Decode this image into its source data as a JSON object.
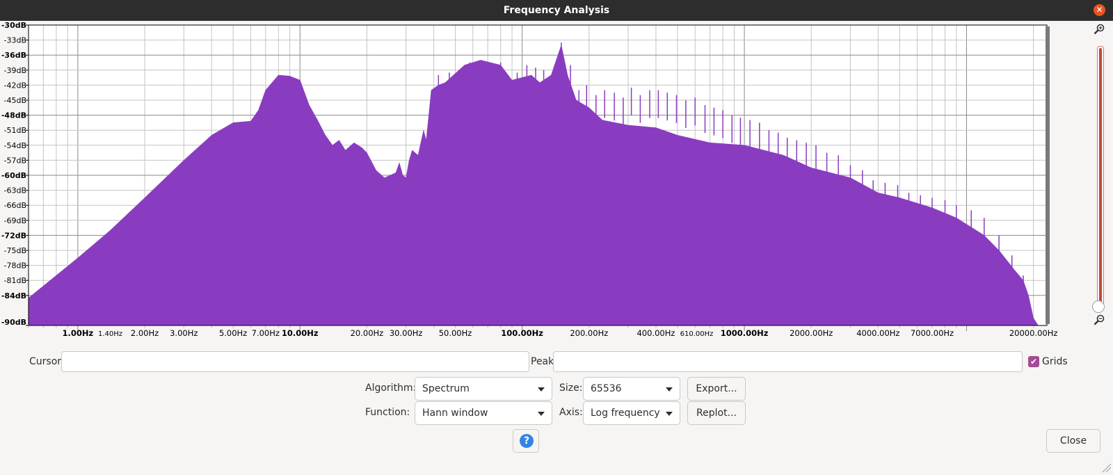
{
  "window": {
    "title": "Frequency Analysis"
  },
  "chart_data": {
    "type": "area",
    "title": "",
    "x_scale": "log",
    "xlim": [
      0.6,
      23000
    ],
    "ylim": [
      -90,
      -30
    ],
    "fill_color": "#8a3cc0",
    "grid": true,
    "y_ticks": [
      {
        "label": "-30dB",
        "value": -30,
        "major": true
      },
      {
        "label": "-33dB",
        "value": -33,
        "major": false
      },
      {
        "label": "-36dB",
        "value": -36,
        "major": true
      },
      {
        "label": "-39dB",
        "value": -39,
        "major": false
      },
      {
        "label": "-42dB",
        "value": -42,
        "major": false
      },
      {
        "label": "-45dB",
        "value": -45,
        "major": false
      },
      {
        "label": "-48dB",
        "value": -48,
        "major": true
      },
      {
        "label": "-51dB",
        "value": -51,
        "major": false
      },
      {
        "label": "-54dB",
        "value": -54,
        "major": false
      },
      {
        "label": "-57dB",
        "value": -57,
        "major": false
      },
      {
        "label": "-60dB",
        "value": -60,
        "major": true
      },
      {
        "label": "-63dB",
        "value": -63,
        "major": false
      },
      {
        "label": "-66dB",
        "value": -66,
        "major": false
      },
      {
        "label": "-69dB",
        "value": -69,
        "major": false
      },
      {
        "label": "-72dB",
        "value": -72,
        "major": true
      },
      {
        "label": "-75dB",
        "value": -75,
        "major": false
      },
      {
        "label": "-78dB",
        "value": -78,
        "major": false
      },
      {
        "label": "-81dB",
        "value": -81,
        "major": false
      },
      {
        "label": "-84dB",
        "value": -84,
        "major": true
      },
      {
        "label": "-90dB",
        "value": -90,
        "major": true
      }
    ],
    "x_ticks": [
      {
        "label": "1.00Hz",
        "value": 1,
        "major": true
      },
      {
        "label": "1.40Hz",
        "value": 1.4,
        "major": false,
        "small": true
      },
      {
        "label": "2.00Hz",
        "value": 2,
        "major": false
      },
      {
        "label": "3.00Hz",
        "value": 3,
        "major": false
      },
      {
        "label": "5.00Hz",
        "value": 5,
        "major": false
      },
      {
        "label": "7.00Hz",
        "value": 7,
        "major": false
      },
      {
        "label": "10.00Hz",
        "value": 10,
        "major": true
      },
      {
        "label": "20.00Hz",
        "value": 20,
        "major": false
      },
      {
        "label": "30.00Hz",
        "value": 30,
        "major": false
      },
      {
        "label": "50.00Hz",
        "value": 50,
        "major": false
      },
      {
        "label": "100.00Hz",
        "value": 100,
        "major": true
      },
      {
        "label": "200.00Hz",
        "value": 200,
        "major": false
      },
      {
        "label": "400.00Hz",
        "value": 400,
        "major": false
      },
      {
        "label": "610.00Hz",
        "value": 610,
        "major": false,
        "small": true
      },
      {
        "label": "1000.00Hz",
        "value": 1000,
        "major": true
      },
      {
        "label": "2000.00Hz",
        "value": 2000,
        "major": false
      },
      {
        "label": "4000.00Hz",
        "value": 4000,
        "major": false
      },
      {
        "label": "7000.00Hz",
        "value": 7000,
        "major": false
      },
      {
        "label": "20000.00Hz",
        "value": 20000,
        "major": false
      }
    ],
    "envelope": [
      [
        0.6,
        -84.5
      ],
      [
        0.8,
        -80
      ],
      [
        1.0,
        -76.5
      ],
      [
        1.4,
        -71
      ],
      [
        2.0,
        -64.5
      ],
      [
        3.0,
        -57
      ],
      [
        4.0,
        -52
      ],
      [
        5.0,
        -49.5
      ],
      [
        6.0,
        -49.2
      ],
      [
        6.5,
        -47
      ],
      [
        7.0,
        -43
      ],
      [
        8.0,
        -40
      ],
      [
        9.0,
        -40.2
      ],
      [
        10.0,
        -41
      ],
      [
        11.0,
        -46
      ],
      [
        12.0,
        -49
      ],
      [
        13.0,
        -52
      ],
      [
        14.0,
        -54
      ],
      [
        15.0,
        -53
      ],
      [
        16.0,
        -55
      ],
      [
        17.5,
        -53.5
      ],
      [
        19.0,
        -54.5
      ],
      [
        20.0,
        -55.5
      ],
      [
        22.0,
        -59
      ],
      [
        24.0,
        -60.5
      ],
      [
        27.0,
        -59.5
      ],
      [
        28.0,
        -57.5
      ],
      [
        29.0,
        -60
      ],
      [
        30.0,
        -60.5
      ],
      [
        31.0,
        -57
      ],
      [
        32.0,
        -55
      ],
      [
        34.0,
        -56
      ],
      [
        36.0,
        -51
      ],
      [
        37.0,
        -53
      ],
      [
        38.0,
        -48
      ],
      [
        39.0,
        -43
      ],
      [
        42.0,
        -42
      ],
      [
        45.0,
        -41.5
      ],
      [
        55.0,
        -38
      ],
      [
        65.0,
        -37
      ],
      [
        80.0,
        -38
      ],
      [
        90.0,
        -41
      ],
      [
        110.0,
        -40
      ],
      [
        120.0,
        -41.5
      ],
      [
        135.0,
        -40
      ],
      [
        150.0,
        -34
      ],
      [
        160.0,
        -40
      ],
      [
        175.0,
        -45
      ],
      [
        200.0,
        -46.5
      ],
      [
        230.0,
        -49
      ],
      [
        300.0,
        -50
      ],
      [
        400.0,
        -50.5
      ],
      [
        500.0,
        -52
      ],
      [
        700.0,
        -53.5
      ],
      [
        1000.0,
        -54
      ],
      [
        1500.0,
        -56
      ],
      [
        2000.0,
        -58.5
      ],
      [
        3000.0,
        -60.5
      ],
      [
        4000.0,
        -63.5
      ],
      [
        5000.0,
        -64.5
      ],
      [
        7000.0,
        -66.5
      ],
      [
        9000.0,
        -68.5
      ],
      [
        12000.0,
        -72
      ],
      [
        14000.0,
        -75
      ],
      [
        16500.0,
        -79
      ],
      [
        18000.0,
        -81
      ],
      [
        19000.0,
        -84
      ],
      [
        20000.0,
        -88.5
      ],
      [
        21000.0,
        -90
      ]
    ],
    "spikes": [
      [
        42,
        -40
      ],
      [
        47,
        -39.5
      ],
      [
        51,
        -41
      ],
      [
        58,
        -37.5
      ],
      [
        63,
        -37.2
      ],
      [
        72,
        -38
      ],
      [
        80,
        -37.5
      ],
      [
        95,
        -39.5
      ],
      [
        105,
        -38
      ],
      [
        115,
        -38.5
      ],
      [
        125,
        -39
      ],
      [
        140,
        -38
      ],
      [
        150,
        -33.5
      ],
      [
        165,
        -38
      ],
      [
        180,
        -43
      ],
      [
        195,
        -42
      ],
      [
        215,
        -44
      ],
      [
        235,
        -43
      ],
      [
        260,
        -43.5
      ],
      [
        285,
        -44.5
      ],
      [
        310,
        -42.5
      ],
      [
        340,
        -44
      ],
      [
        375,
        -43
      ],
      [
        410,
        -43
      ],
      [
        450,
        -43.5
      ],
      [
        495,
        -44
      ],
      [
        545,
        -45
      ],
      [
        600,
        -44.5
      ],
      [
        665,
        -46
      ],
      [
        730,
        -46.5
      ],
      [
        800,
        -47
      ],
      [
        880,
        -48
      ],
      [
        960,
        -48.5
      ],
      [
        1060,
        -49
      ],
      [
        1170,
        -49.5
      ],
      [
        1290,
        -51
      ],
      [
        1420,
        -51.5
      ],
      [
        1560,
        -52.5
      ],
      [
        1720,
        -53
      ],
      [
        1900,
        -53.5
      ],
      [
        2100,
        -54
      ],
      [
        2350,
        -55.5
      ],
      [
        2650,
        -56
      ],
      [
        3000,
        -58
      ],
      [
        3400,
        -59
      ],
      [
        3800,
        -61
      ],
      [
        4300,
        -61.5
      ],
      [
        4900,
        -62
      ],
      [
        5500,
        -63.5
      ],
      [
        6200,
        -64
      ],
      [
        7000,
        -64.5
      ],
      [
        8000,
        -65
      ],
      [
        9000,
        -66
      ],
      [
        10500,
        -67
      ],
      [
        12000,
        -68.5
      ],
      [
        14000,
        -72
      ],
      [
        16000,
        -76
      ],
      [
        18000,
        -80
      ]
    ]
  },
  "controls": {
    "cursor": {
      "label": "Cursor:",
      "value": ""
    },
    "peak": {
      "label": "Peak:",
      "value": ""
    },
    "grids": {
      "label": "Grids",
      "checked": true
    },
    "algorithm": {
      "label": "Algorithm:",
      "value": "Spectrum"
    },
    "size": {
      "label": "Size:",
      "value": "65536"
    },
    "export_label": "Export...",
    "function": {
      "label": "Function:",
      "value": "Hann window"
    },
    "axis": {
      "label": "Axis:",
      "value": "Log frequency"
    },
    "replot_label": "Replot...",
    "help_glyph": "?",
    "close_label": "Close"
  }
}
